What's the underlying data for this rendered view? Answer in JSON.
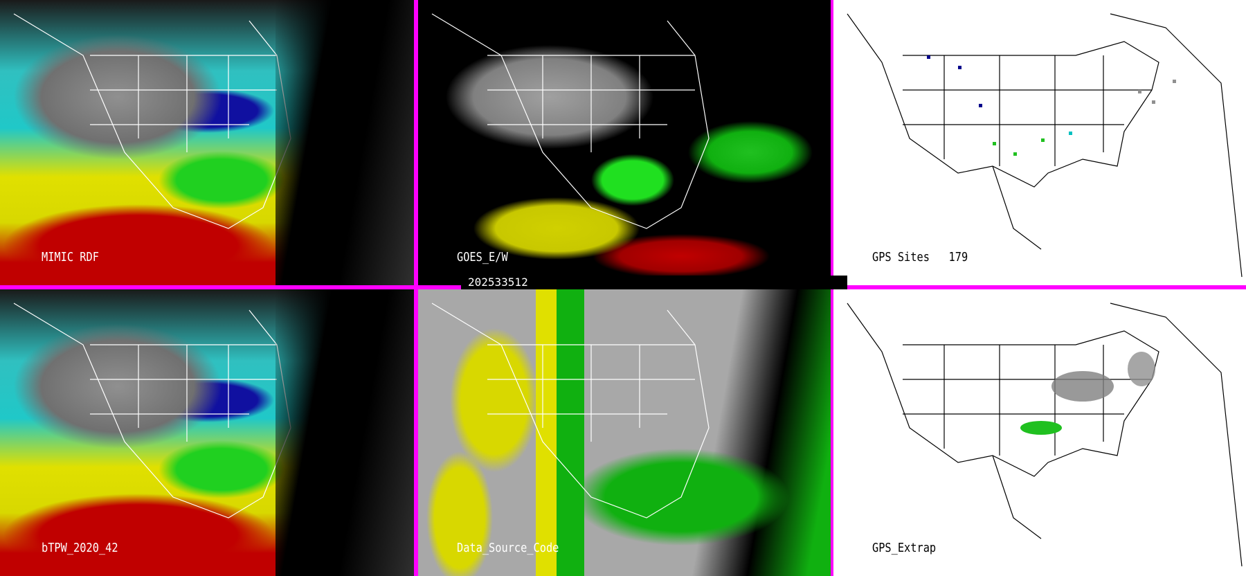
{
  "panels": [
    {
      "label": "MIMIC RDF"
    },
    {
      "label": "GOES_E/W"
    },
    {
      "label": "GPS Sites",
      "count": "179"
    },
    {
      "label": "bTPW_2020_42"
    },
    {
      "label": "Data_Source_Code"
    },
    {
      "label": "GPS_Extrap"
    }
  ],
  "timestamp": "202533512",
  "colors": {
    "separator": "#ff00ff",
    "gps_site_colors": [
      "#00008b",
      "#00c0c0",
      "#20c020",
      "#909090"
    ]
  }
}
